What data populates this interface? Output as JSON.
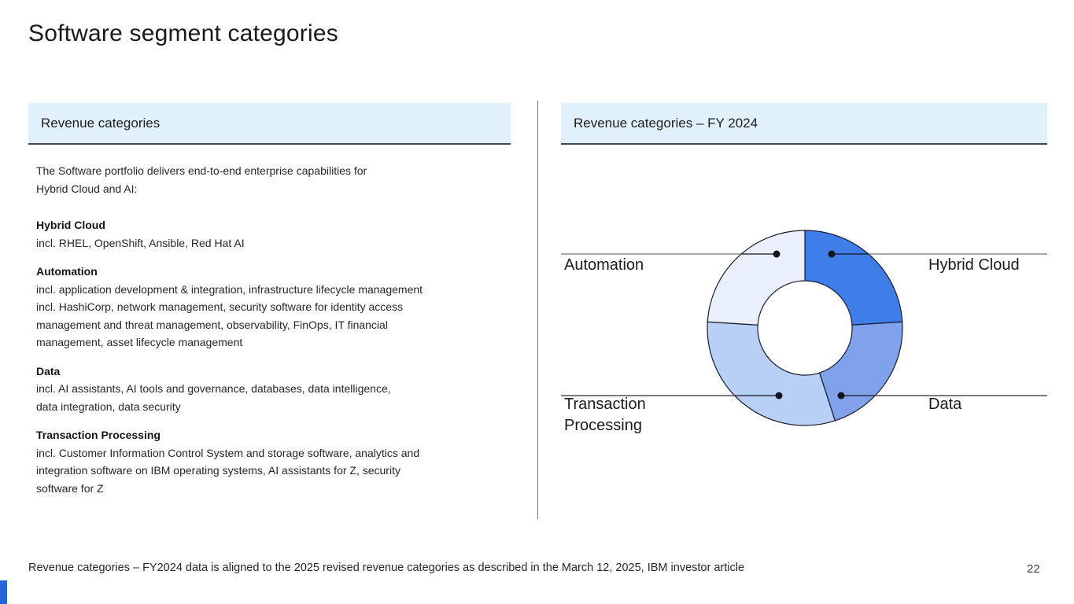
{
  "slide": {
    "title": "Software segment categories",
    "footer": "Revenue categories – FY2024 data is aligned to the 2025 revised revenue categories as described in the March 12, 2025, IBM investor article",
    "page_number": "22",
    "accent_color": "#2463db"
  },
  "left_panel": {
    "header": "Revenue categories",
    "intro": "The Software portfolio delivers end-to-end enterprise capabilities for\nHybrid Cloud and AI:",
    "sections": [
      {
        "title": "Hybrid Cloud",
        "description": "incl. RHEL, OpenShift, Ansible, Red Hat AI"
      },
      {
        "title": "Automation",
        "description": "incl. application development & integration, infrastructure lifecycle management\nincl. HashiCorp, network management, security software for identity access\nmanagement and threat management, observability, FinOps, IT financial\nmanagement, asset lifecycle management"
      },
      {
        "title": "Data",
        "description": "incl. AI assistants, AI tools and governance, databases, data intelligence,\ndata integration, data security"
      },
      {
        "title": "Transaction Processing",
        "description": "incl. Customer Information Control System and storage software, analytics and\nintegration software on IBM operating systems, AI assistants for Z, security\nsoftware for Z"
      }
    ]
  },
  "right_panel": {
    "header": "Revenue categories – FY 2024"
  },
  "chart_data": {
    "type": "pie",
    "subtype": "donut",
    "title": "Revenue categories – FY 2024",
    "categories": [
      "Hybrid Cloud",
      "Data",
      "Transaction Processing",
      "Automation"
    ],
    "values": [
      24,
      21,
      31,
      24
    ],
    "value_note": "approximate share of ring estimated from arc angles; no numeric labels shown in chart",
    "colors": [
      "#3f7de8",
      "#7fa2eb",
      "#b8d0f5",
      "#e9f0fb"
    ],
    "stroke_color": "#1b1b2f",
    "start_angle_deg": 0,
    "direction": "clockwise",
    "inner_radius_ratio": 0.48,
    "legend_position": "callout-labels",
    "labels_shown": [
      "Automation",
      "Hybrid Cloud",
      "Transaction Processing",
      "Data"
    ]
  }
}
